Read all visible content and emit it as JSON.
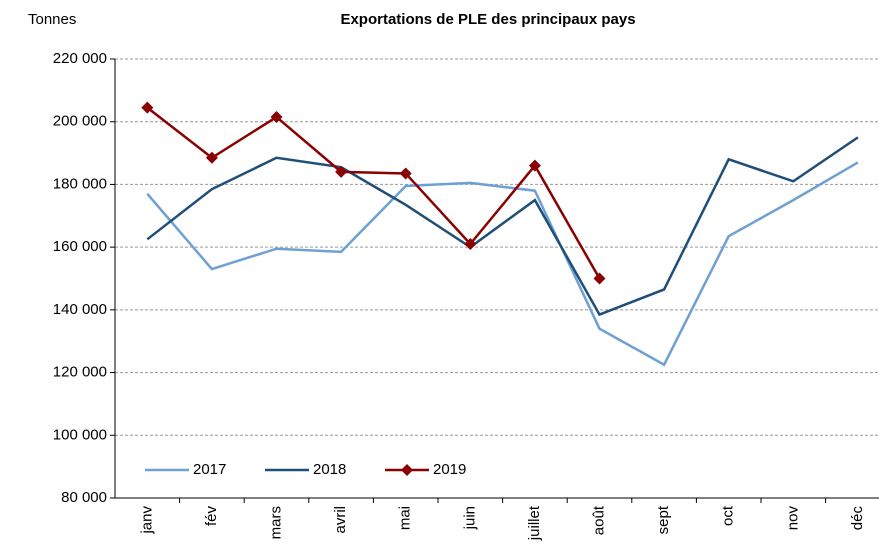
{
  "chart_data": {
    "type": "line",
    "title": "Exportations de PLE des principaux pays",
    "y_label": "Tonnes",
    "categories": [
      "janv",
      "fév",
      "mars",
      "avril",
      "mai",
      "juin",
      "juillet",
      "août",
      "sept",
      "oct",
      "nov",
      "déc"
    ],
    "series": [
      {
        "name": "2017",
        "color": "#6fa0d4",
        "marker": false,
        "values": [
          177000,
          153000,
          159500,
          158500,
          179500,
          180500,
          178000,
          134000,
          122500,
          163500,
          175000,
          187000
        ]
      },
      {
        "name": "2018",
        "color": "#1f4e79",
        "marker": false,
        "values": [
          162500,
          178500,
          188500,
          185500,
          173500,
          160000,
          175000,
          138500,
          146500,
          188000,
          181000,
          195000
        ]
      },
      {
        "name": "2019",
        "color": "#8b0000",
        "marker": true,
        "values": [
          204500,
          188500,
          201500,
          184000,
          183500,
          161000,
          186000,
          150000,
          null,
          null,
          null,
          null
        ]
      }
    ],
    "ylim": [
      80000,
      220000
    ],
    "yticks": [
      {
        "value": 80000,
        "label": "80 000"
      },
      {
        "value": 100000,
        "label": "100 000"
      },
      {
        "value": 120000,
        "label": "120 000"
      },
      {
        "value": 140000,
        "label": "140 000"
      },
      {
        "value": 160000,
        "label": "160 000"
      },
      {
        "value": 180000,
        "label": "180 000"
      },
      {
        "value": 200000,
        "label": "200 000"
      },
      {
        "value": 220000,
        "label": "220 000"
      }
    ],
    "grid": true,
    "legend": "bottom-left"
  }
}
